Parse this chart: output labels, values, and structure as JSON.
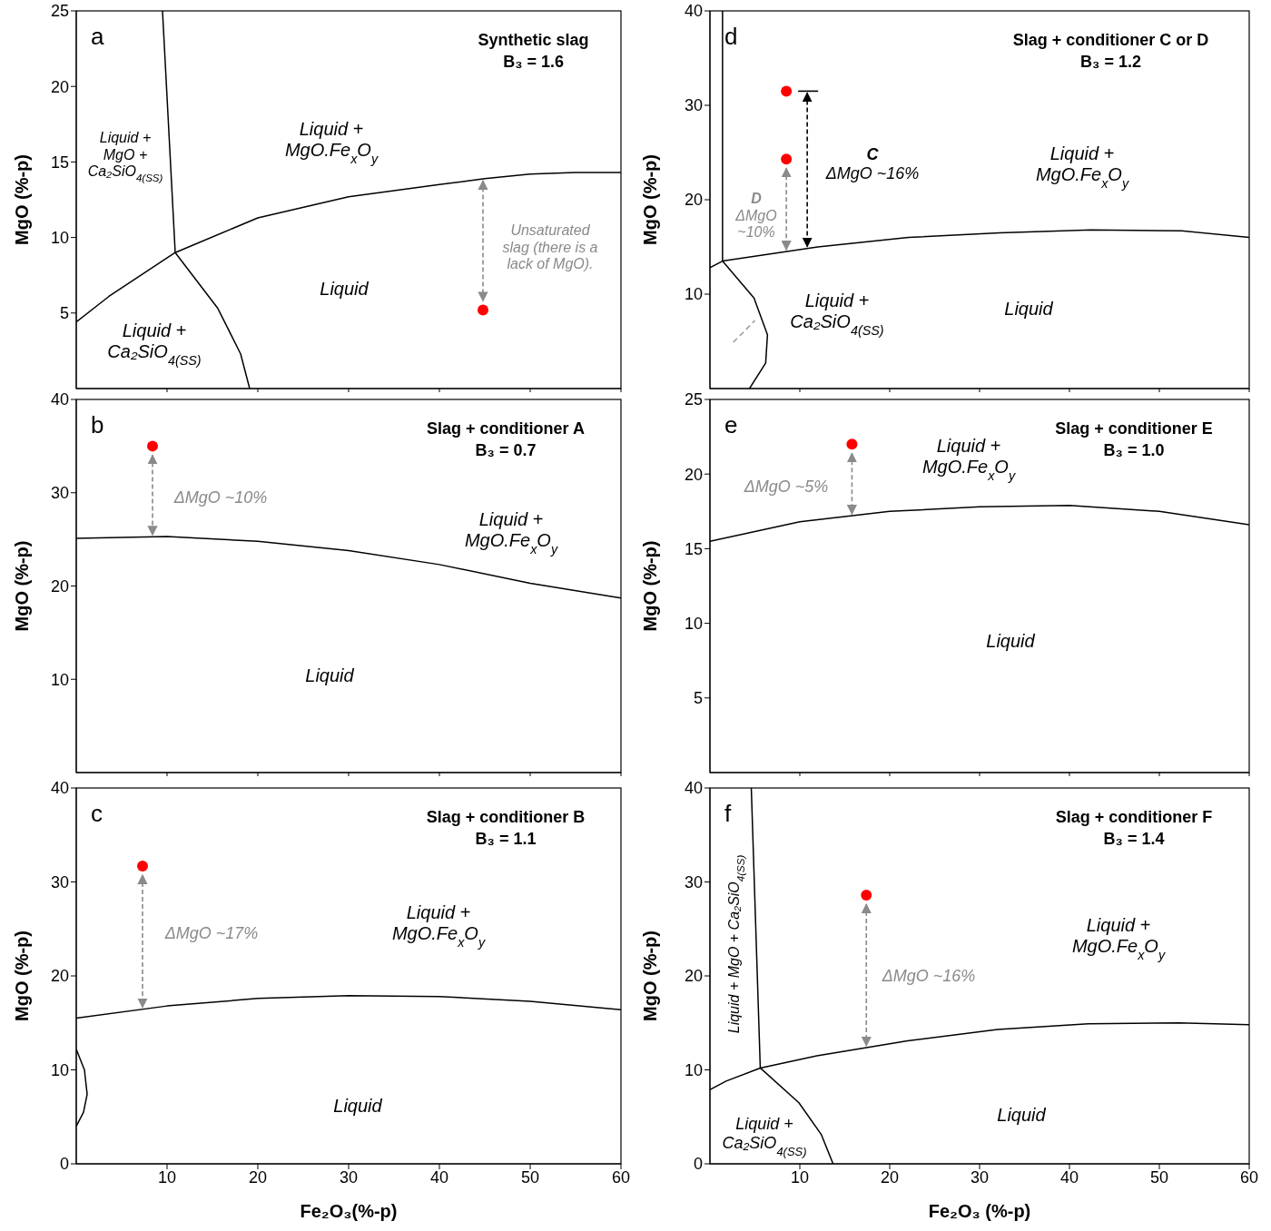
{
  "chart_data": [
    {
      "type": "line",
      "title": "a",
      "subtitle": "Synthetic slag\nB₃ = 1.6",
      "ylabel": "MgO (%-p)",
      "xlim": [
        0,
        60
      ],
      "xticks": [
        10,
        20,
        30,
        40,
        50,
        60
      ],
      "ylim": [
        0,
        25
      ],
      "yticks": [
        5,
        10,
        15,
        20,
        25
      ],
      "tick_labels": "y",
      "marker": "none",
      "series": [
        {
          "color": "#000000",
          "x": [
            9.5,
            10.9,
            15.6,
            18.1,
            19.1
          ],
          "values": [
            25,
            9.0,
            5.3,
            2.3,
            0
          ]
        },
        {
          "color": "#000000",
          "x": [
            0,
            3.6,
            10.9,
            20,
            30,
            40,
            45,
            50,
            55,
            60
          ],
          "values": [
            4.4,
            6.1,
            9.0,
            11.3,
            12.7,
            13.5,
            13.9,
            14.2,
            14.3,
            14.3
          ]
        },
        {
          "type": "scatter",
          "color": "#ff0000",
          "marker": "circle",
          "x": [
            44.8
          ],
          "values": [
            5.2
          ]
        }
      ],
      "annotations": [
        "Unsaturated\nslag (there is a\nlack of MgO).",
        "Liquid +\nMgO +\nCa₂SiO$_{4(SS)}$",
        "Liquid +\nMgO.Fe$_{x}$O$_{y}$",
        "Liquid",
        "Liquid +\nCa₂SiO$_{4(SS)}$"
      ]
    },
    {
      "type": "line",
      "title": "b",
      "subtitle": "Slag + conditioner A\nB₃ = 0.7",
      "ylabel": "MgO (%-p)",
      "xlim": [
        0,
        60
      ],
      "xticks": [
        10,
        20,
        30,
        40,
        50,
        60
      ],
      "ylim": [
        0,
        40
      ],
      "yticks": [
        10,
        20,
        30,
        40
      ],
      "tick_labels": "y",
      "marker": "none",
      "series": [
        {
          "color": "#000000",
          "x": [
            0,
            10,
            20,
            30,
            40,
            50,
            60
          ],
          "values": [
            25.1,
            25.3,
            24.8,
            23.8,
            22.3,
            20.3,
            18.7
          ]
        },
        {
          "type": "scatter",
          "color": "#ff0000",
          "marker": "circle",
          "x": [
            8.4
          ],
          "values": [
            35
          ]
        }
      ],
      "annotations": [
        "ΔMgO ~10%",
        "Liquid +\nMgO.Fe$_{x}$O$_{y}$",
        "Liquid"
      ]
    },
    {
      "type": "line",
      "title": "c",
      "subtitle": "Slag + conditioner B\nB₃ = 1.1",
      "ylabel": "MgO (%-p)",
      "xlabel": "Fe₂O₃(%-p)",
      "xlim": [
        0,
        60
      ],
      "xticks": [
        10,
        20,
        30,
        40,
        50,
        60
      ],
      "ylim": [
        0,
        40
      ],
      "yticks": [
        0,
        10,
        20,
        30,
        40
      ],
      "marker": "none",
      "series": [
        {
          "color": "#000000",
          "x": [
            0,
            10,
            20,
            30,
            40,
            50,
            60
          ],
          "values": [
            15.5,
            16.8,
            17.6,
            17.9,
            17.8,
            17.3,
            16.4
          ]
        },
        {
          "color": "#000000",
          "x": [
            0,
            0.9,
            1.2,
            0.8,
            0
          ],
          "values": [
            12.2,
            10,
            7.4,
            5.5,
            4.0
          ]
        },
        {
          "type": "scatter",
          "color": "#ff0000",
          "marker": "circle",
          "x": [
            7.3
          ],
          "values": [
            31.7
          ]
        }
      ],
      "annotations": [
        "ΔMgO ~17%",
        "Liquid +\nMgO.Fe$_{x}$O$_{y}$",
        "Liquid"
      ]
    },
    {
      "type": "line",
      "title": "d",
      "subtitle": "Slag + conditioner C or D\nB₃ = 1.2",
      "ylabel": "MgO (%-p)",
      "xlim": [
        0,
        60
      ],
      "xticks": [
        10,
        20,
        30,
        40,
        50,
        60
      ],
      "ylim": [
        0,
        40
      ],
      "yticks": [
        10,
        20,
        30,
        40
      ],
      "tick_labels": "y",
      "marker": "none",
      "series": [
        {
          "color": "#000000",
          "x": [
            1.4,
            1.4,
            4.9,
            6.4,
            6.2,
            4.4
          ],
          "values": [
            40,
            13.5,
            9.6,
            5.7,
            2.7,
            0
          ]
        },
        {
          "color": "#000000",
          "x": [
            0,
            1.4,
            12,
            22.1,
            32.2,
            42.4,
            52.5,
            60
          ],
          "values": [
            12.8,
            13.5,
            15.0,
            16.0,
            16.5,
            16.8,
            16.7,
            16.0
          ]
        },
        {
          "color": "#999999",
          "line_style": "dashed",
          "x": [
            2.6,
            5.0
          ],
          "values": [
            4.9,
            7.2
          ]
        },
        {
          "type": "scatter",
          "color": "#ff0000",
          "marker": "circle",
          "x": [
            8.5,
            8.5
          ],
          "values": [
            31.5,
            24.3
          ]
        }
      ],
      "annotations": [
        "C\nΔMgO ~16%",
        "D\nΔMgO\n~10%",
        "Liquid +\nMgO.Fe$_{x}$O$_{y}$",
        "Liquid +\nCa₂SiO$_{4(SS)}$",
        "Liquid"
      ]
    },
    {
      "type": "line",
      "title": "e",
      "subtitle": "Slag + conditioner E\nB₃ = 1.0",
      "ylabel": "MgO (%-p)",
      "xlim": [
        0,
        60
      ],
      "xticks": [
        10,
        20,
        30,
        40,
        50,
        60
      ],
      "ylim": [
        0,
        25
      ],
      "yticks": [
        5,
        10,
        15,
        20,
        25
      ],
      "tick_labels": "y",
      "marker": "none",
      "series": [
        {
          "color": "#000000",
          "x": [
            0,
            10,
            20,
            30,
            40,
            50,
            60
          ],
          "values": [
            15.5,
            16.8,
            17.5,
            17.8,
            17.9,
            17.5,
            16.6
          ]
        },
        {
          "type": "scatter",
          "color": "#ff0000",
          "marker": "circle",
          "x": [
            15.8
          ],
          "values": [
            22.0
          ]
        }
      ],
      "annotations": [
        "ΔMgO ~5%",
        "Liquid +\nMgO.Fe$_{x}$O$_{y}$",
        "Liquid"
      ]
    },
    {
      "type": "line",
      "title": "f",
      "subtitle": "Slag + conditioner F\nB₃ = 1.4",
      "ylabel": "MgO (%-p)",
      "xlabel": "Fe₂O₃ (%-p)",
      "xlim": [
        0,
        60
      ],
      "xticks": [
        10,
        20,
        30,
        40,
        50,
        60
      ],
      "ylim": [
        0,
        40
      ],
      "yticks": [
        0,
        10,
        20,
        30,
        40
      ],
      "marker": "none",
      "series": [
        {
          "color": "#000000",
          "x": [
            4.6,
            5.6,
            9.9,
            12.4,
            13.7
          ],
          "values": [
            40,
            10.2,
            6.5,
            3.1,
            0
          ]
        },
        {
          "color": "#000000",
          "x": [
            0,
            1.8,
            5.6,
            11.9,
            22,
            32,
            42.1,
            52.2,
            60
          ],
          "values": [
            7.9,
            8.8,
            10.2,
            11.5,
            13.1,
            14.3,
            14.9,
            15.0,
            14.8
          ]
        },
        {
          "type": "scatter",
          "color": "#ff0000",
          "marker": "circle",
          "x": [
            17.4
          ],
          "values": [
            28.6
          ]
        }
      ],
      "annotations": [
        "ΔMgO ~16%",
        "Liquid +\nMgO.Fe$_{x}$O$_{y}$",
        "Liquid",
        "Liquid +\nCa₂SiO$_{4(SS)}$",
        "Liquid + MgO + Ca₂SiO$_{4(SS)}$"
      ]
    }
  ]
}
